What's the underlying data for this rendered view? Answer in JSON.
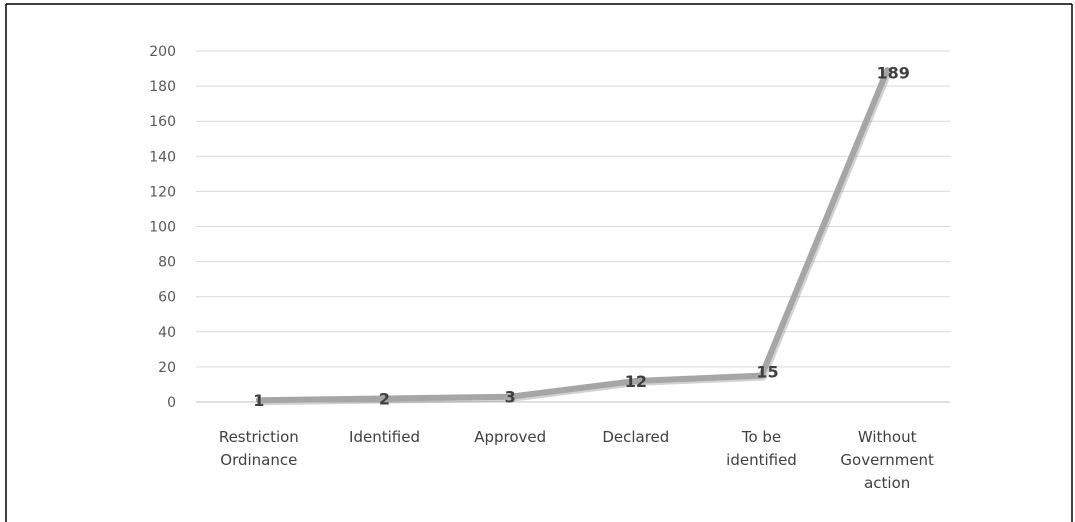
{
  "chart_data": {
    "type": "line",
    "categories": [
      [
        "Restriction",
        "Ordinance"
      ],
      [
        "Identified"
      ],
      [
        "Approved"
      ],
      [
        "Declared"
      ],
      [
        "To be",
        "identified"
      ],
      [
        "Without",
        "Government",
        "action"
      ]
    ],
    "series": [
      {
        "values": [
          1,
          2,
          3,
          12,
          15,
          189
        ]
      }
    ],
    "data_labels": [
      "1",
      "2",
      "3",
      "12",
      "15",
      "189"
    ],
    "y_ticks": [
      "0",
      "20",
      "40",
      "60",
      "80",
      "100",
      "120",
      "140",
      "160",
      "180",
      "200"
    ],
    "ylim": [
      0,
      200
    ],
    "grid": true,
    "legend": "none",
    "colors": {
      "line": "#a6a6a6",
      "line_shadow": "#7f7f7f",
      "grid": "#d9d9d9",
      "frame": "#000000"
    }
  }
}
